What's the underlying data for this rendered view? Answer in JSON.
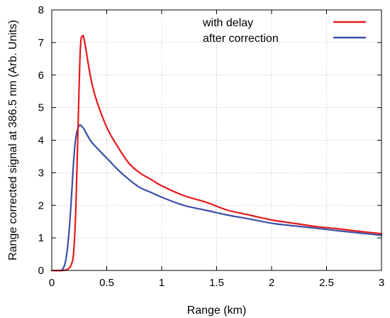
{
  "chart_data": {
    "type": "line",
    "title": "",
    "xlabel": "Range (km)",
    "ylabel": "Range corrected signal at 386.5 nm (Arb. Units)",
    "xlim": [
      0,
      3
    ],
    "ylim": [
      0,
      8
    ],
    "x_ticks": [
      0,
      0.5,
      1,
      1.5,
      2,
      2.5,
      3
    ],
    "x_tick_labels": [
      "0",
      "0.5",
      "1",
      "1.5",
      "2",
      "2.5",
      "3"
    ],
    "y_ticks": [
      0,
      1,
      2,
      3,
      4,
      5,
      6,
      7,
      8
    ],
    "y_tick_labels": [
      "0",
      "1",
      "2",
      "3",
      "4",
      "5",
      "6",
      "7",
      "8"
    ],
    "grid": true,
    "legend_position": "top-right",
    "series": [
      {
        "name": "with delay",
        "color": "#e41a1c",
        "x": [
          0,
          0.1,
          0.15,
          0.18,
          0.2,
          0.22,
          0.24,
          0.26,
          0.28,
          0.3,
          0.35,
          0.4,
          0.5,
          0.6,
          0.7,
          0.8,
          0.9,
          1.0,
          1.2,
          1.4,
          1.6,
          1.8,
          2.0,
          2.2,
          2.4,
          2.6,
          2.8,
          3.0
        ],
        "y": [
          0,
          0,
          0.05,
          0.2,
          0.6,
          2.0,
          4.5,
          6.8,
          7.2,
          7.0,
          6.0,
          5.3,
          4.4,
          3.8,
          3.3,
          3.0,
          2.8,
          2.6,
          2.3,
          2.1,
          1.85,
          1.7,
          1.55,
          1.45,
          1.35,
          1.28,
          1.2,
          1.13
        ]
      },
      {
        "name": "after correction",
        "color": "#3a4fa8",
        "x": [
          0,
          0.08,
          0.1,
          0.12,
          0.14,
          0.16,
          0.18,
          0.2,
          0.22,
          0.25,
          0.28,
          0.3,
          0.35,
          0.4,
          0.5,
          0.6,
          0.7,
          0.8,
          0.9,
          1.0,
          1.2,
          1.4,
          1.6,
          1.8,
          2.0,
          2.2,
          2.4,
          2.6,
          2.8,
          3.0
        ],
        "y": [
          0,
          0,
          0.05,
          0.2,
          0.6,
          1.3,
          2.3,
          3.4,
          4.1,
          4.45,
          4.4,
          4.3,
          4.0,
          3.8,
          3.45,
          3.1,
          2.8,
          2.55,
          2.4,
          2.25,
          2.0,
          1.85,
          1.7,
          1.58,
          1.45,
          1.37,
          1.3,
          1.22,
          1.15,
          1.08
        ]
      }
    ]
  }
}
